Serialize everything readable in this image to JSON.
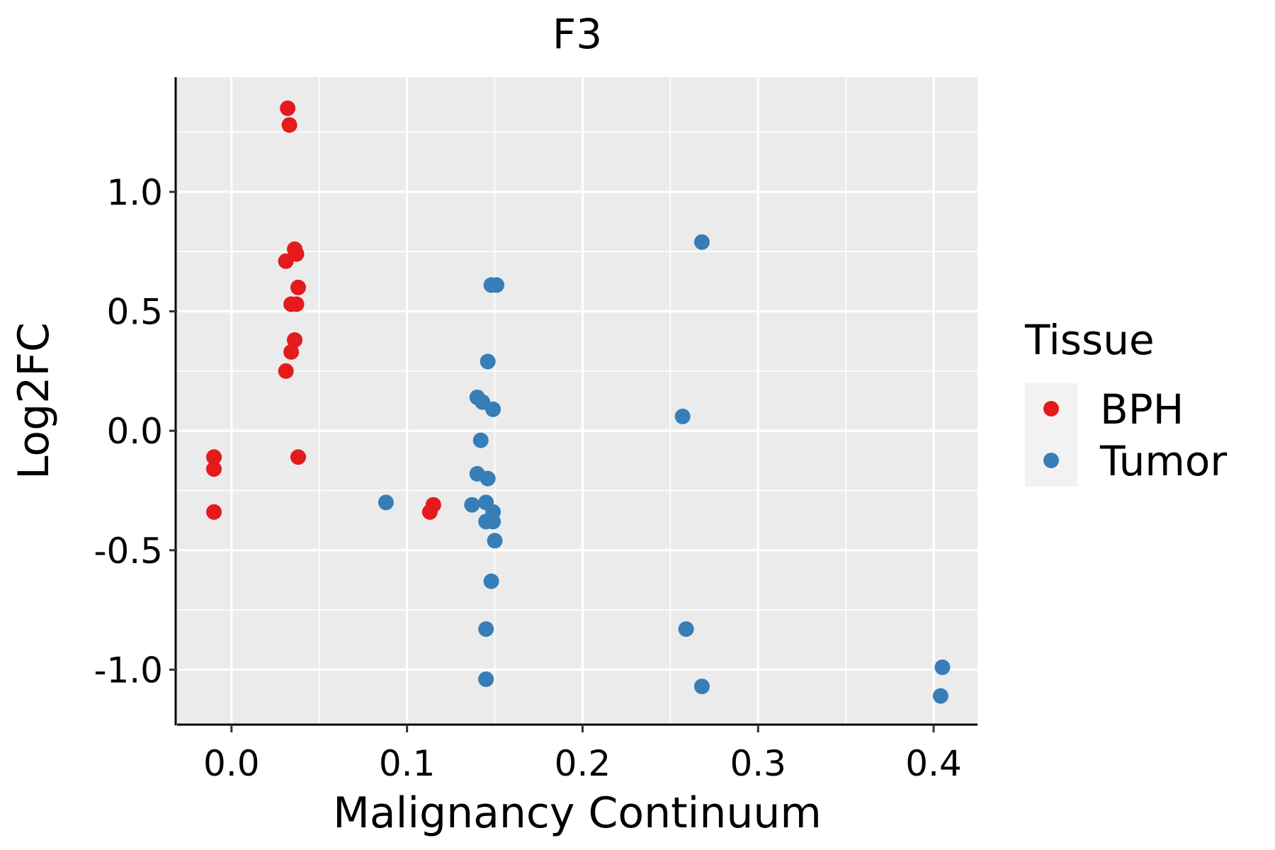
{
  "chart_data": {
    "type": "scatter",
    "title": "F3",
    "xlabel": "Malignancy Continuum",
    "ylabel": "Log2FC",
    "xlim": [
      -0.031,
      0.425
    ],
    "ylim": [
      -1.23,
      1.48
    ],
    "xticks": [
      0.0,
      0.1,
      0.2,
      0.3,
      0.4
    ],
    "xtick_labels": [
      "0.0",
      "0.1",
      "0.2",
      "0.3",
      "0.4"
    ],
    "yticks": [
      -1.0,
      -0.5,
      0.0,
      0.5,
      1.0
    ],
    "ytick_labels": [
      "-1.0",
      "-0.5",
      "0.0",
      "0.5",
      "1.0"
    ],
    "grid": true,
    "legend": {
      "title": "Tissue",
      "position": "right",
      "entries": [
        {
          "name": "BPH",
          "color": "#E41A1C"
        },
        {
          "name": "Tumor",
          "color": "#377EB8"
        }
      ]
    },
    "series": [
      {
        "name": "BPH",
        "color": "#E41A1C",
        "points": [
          [
            0.032,
            1.35
          ],
          [
            0.033,
            1.28
          ],
          [
            0.036,
            0.76
          ],
          [
            0.037,
            0.74
          ],
          [
            0.031,
            0.71
          ],
          [
            0.038,
            0.6
          ],
          [
            0.034,
            0.53
          ],
          [
            0.037,
            0.53
          ],
          [
            0.036,
            0.38
          ],
          [
            0.034,
            0.33
          ],
          [
            0.031,
            0.25
          ],
          [
            0.038,
            -0.11
          ],
          [
            -0.01,
            -0.11
          ],
          [
            -0.01,
            -0.16
          ],
          [
            -0.01,
            -0.34
          ],
          [
            0.115,
            -0.31
          ],
          [
            0.113,
            -0.34
          ]
        ]
      },
      {
        "name": "Tumor",
        "color": "#377EB8",
        "points": [
          [
            0.268,
            0.79
          ],
          [
            0.148,
            0.61
          ],
          [
            0.151,
            0.61
          ],
          [
            0.146,
            0.29
          ],
          [
            0.14,
            0.14
          ],
          [
            0.143,
            0.12
          ],
          [
            0.149,
            0.09
          ],
          [
            0.257,
            0.06
          ],
          [
            0.142,
            -0.04
          ],
          [
            0.14,
            -0.18
          ],
          [
            0.146,
            -0.2
          ],
          [
            0.088,
            -0.3
          ],
          [
            0.137,
            -0.31
          ],
          [
            0.145,
            -0.3
          ],
          [
            0.149,
            -0.34
          ],
          [
            0.145,
            -0.38
          ],
          [
            0.149,
            -0.38
          ],
          [
            0.15,
            -0.46
          ],
          [
            0.148,
            -0.63
          ],
          [
            0.145,
            -0.83
          ],
          [
            0.259,
            -0.83
          ],
          [
            0.145,
            -1.04
          ],
          [
            0.268,
            -1.07
          ],
          [
            0.405,
            -0.99
          ],
          [
            0.404,
            -1.11
          ]
        ]
      }
    ]
  }
}
